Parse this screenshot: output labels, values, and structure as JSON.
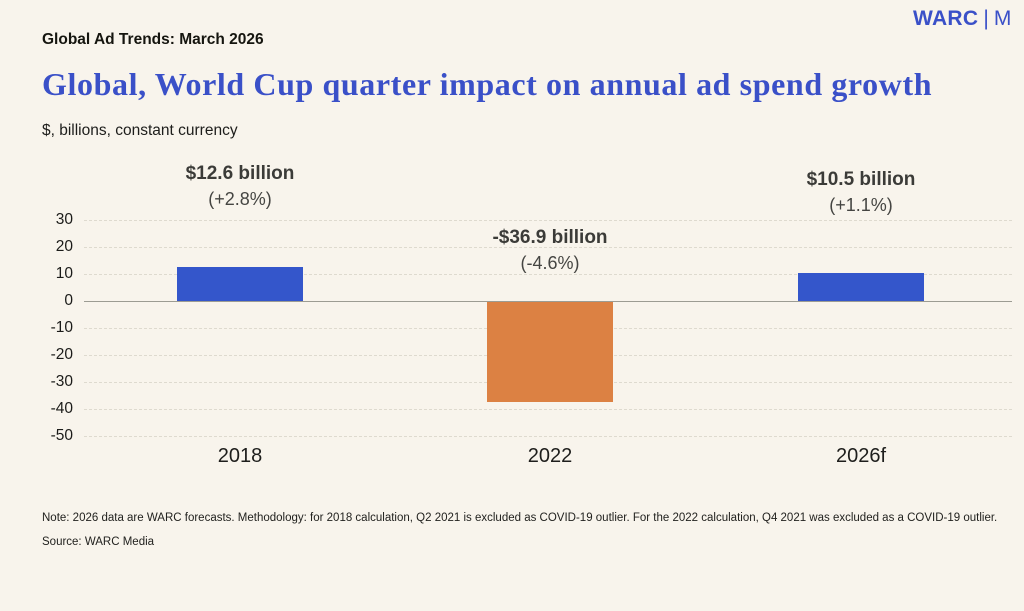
{
  "header": {
    "kicker": "Global Ad Trends: March 2026",
    "logo": {
      "brand": "WARC",
      "separator": "|",
      "suffix": "M"
    }
  },
  "chart_data": {
    "type": "bar",
    "title": "Global, World Cup quarter impact on annual ad spend growth",
    "subtitle": "$, billions, constant currency",
    "categories": [
      "2018",
      "2022",
      "2026f"
    ],
    "values": [
      12.6,
      -36.9,
      10.5
    ],
    "bar_labels": [
      {
        "line1": "$12.6 billion",
        "line2": "(+2.8%)"
      },
      {
        "line1": "-$36.9 billion",
        "line2": "(-4.6%)"
      },
      {
        "line1": "$10.5 billion",
        "line2": "(+1.1%)"
      }
    ],
    "colors": [
      "#3456CB",
      "#DC8143",
      "#3456CB"
    ],
    "yticks": [
      30,
      20,
      10,
      0,
      -10,
      -20,
      -30,
      -40,
      -50
    ],
    "ylim": [
      -50,
      30
    ],
    "xlabel": "",
    "ylabel": "",
    "grid": "horizontal-dashed",
    "legend": "none"
  },
  "footer": {
    "note": "Note: 2026 data are WARC forecasts. Methodology: for 2018 calculation, Q2 2021 is excluded as COVID-19 outlier. For the 2022 calculation, Q4 2021 was excluded as a COVID-19 outlier.",
    "source": "Source: WARC Media"
  },
  "colors": {
    "background": "#F8F4EC",
    "accent_blue": "#3A50C8",
    "bar_blue": "#3456CB",
    "bar_orange": "#DC8143",
    "gridline": "#DEDACF",
    "zero_line": "#9C9C93"
  }
}
